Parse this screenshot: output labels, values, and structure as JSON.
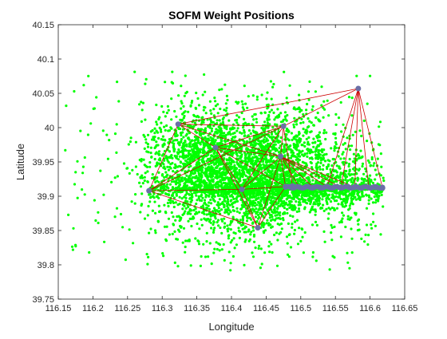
{
  "chart_data": {
    "type": "scatter",
    "title": "SOFM Weight Positions",
    "xlabel": "Longitude",
    "ylabel": "Latitude",
    "xlim": [
      116.15,
      116.65
    ],
    "ylim": [
      39.75,
      40.15
    ],
    "xticks": [
      "116.15",
      "116.2",
      "116.25",
      "116.3",
      "116.35",
      "116.4",
      "116.45",
      "116.5",
      "116.55",
      "116.6",
      "116.65"
    ],
    "yticks": [
      "39.75",
      "39.8",
      "39.85",
      "39.9",
      "39.95",
      "40",
      "40.05",
      "40.1",
      "40.15"
    ],
    "grid": false,
    "legend": "none",
    "colors": {
      "data_points": "#00ff00",
      "weights": "#6b6fa6",
      "links": "#cc0000",
      "axes": "#262626"
    },
    "series": [
      {
        "role": "data-points",
        "note": "dense cloud, approx. 5000 points; sampled distribution",
        "cluster_centers": [
          {
            "x": 116.38,
            "y": 39.93
          },
          {
            "x": 116.45,
            "y": 39.92
          },
          {
            "x": 116.35,
            "y": 39.96
          },
          {
            "x": 116.48,
            "y": 39.97
          },
          {
            "x": 116.52,
            "y": 39.91
          },
          {
            "x": 116.56,
            "y": 39.92
          }
        ],
        "x_range": [
          116.16,
          116.62
        ],
        "y_range": [
          39.79,
          40.1
        ]
      },
      {
        "role": "weights",
        "points": [
          {
            "x": 116.281,
            "y": 39.908
          },
          {
            "x": 116.323,
            "y": 40.005
          },
          {
            "x": 116.377,
            "y": 39.971
          },
          {
            "x": 116.438,
            "y": 39.854
          },
          {
            "x": 116.415,
            "y": 39.91
          },
          {
            "x": 116.475,
            "y": 40.002
          },
          {
            "x": 116.471,
            "y": 39.958
          },
          {
            "x": 116.583,
            "y": 40.057
          },
          {
            "x": 116.478,
            "y": 39.914
          },
          {
            "x": 116.488,
            "y": 39.915
          },
          {
            "x": 116.498,
            "y": 39.913
          },
          {
            "x": 116.508,
            "y": 39.914
          },
          {
            "x": 116.518,
            "y": 39.913
          },
          {
            "x": 116.528,
            "y": 39.913
          },
          {
            "x": 116.538,
            "y": 39.914
          },
          {
            "x": 116.548,
            "y": 39.913
          },
          {
            "x": 116.558,
            "y": 39.913
          },
          {
            "x": 116.568,
            "y": 39.914
          },
          {
            "x": 116.578,
            "y": 39.913
          },
          {
            "x": 116.588,
            "y": 39.912
          },
          {
            "x": 116.598,
            "y": 39.913
          },
          {
            "x": 116.608,
            "y": 39.913
          },
          {
            "x": 116.618,
            "y": 39.912
          }
        ]
      }
    ],
    "links": [
      [
        0,
        1
      ],
      [
        0,
        2
      ],
      [
        0,
        3
      ],
      [
        0,
        4
      ],
      [
        0,
        5
      ],
      [
        1,
        2
      ],
      [
        1,
        5
      ],
      [
        1,
        7
      ],
      [
        1,
        6
      ],
      [
        2,
        3
      ],
      [
        2,
        4
      ],
      [
        2,
        5
      ],
      [
        2,
        6
      ],
      [
        2,
        8
      ],
      [
        3,
        4
      ],
      [
        3,
        8
      ],
      [
        3,
        6
      ],
      [
        4,
        5
      ],
      [
        4,
        6
      ],
      [
        4,
        8
      ],
      [
        5,
        6
      ],
      [
        5,
        7
      ],
      [
        5,
        9
      ],
      [
        6,
        8
      ],
      [
        6,
        10
      ],
      [
        6,
        12
      ],
      [
        6,
        14
      ],
      [
        7,
        14
      ],
      [
        7,
        16
      ],
      [
        7,
        18
      ],
      [
        7,
        20
      ],
      [
        7,
        22
      ],
      [
        8,
        9
      ],
      [
        9,
        10
      ],
      [
        10,
        11
      ],
      [
        11,
        12
      ],
      [
        12,
        13
      ],
      [
        13,
        14
      ],
      [
        14,
        15
      ],
      [
        15,
        16
      ],
      [
        16,
        17
      ],
      [
        17,
        18
      ],
      [
        18,
        19
      ],
      [
        19,
        20
      ],
      [
        20,
        21
      ],
      [
        21,
        22
      ],
      [
        6,
        16
      ],
      [
        6,
        18
      ]
    ]
  }
}
